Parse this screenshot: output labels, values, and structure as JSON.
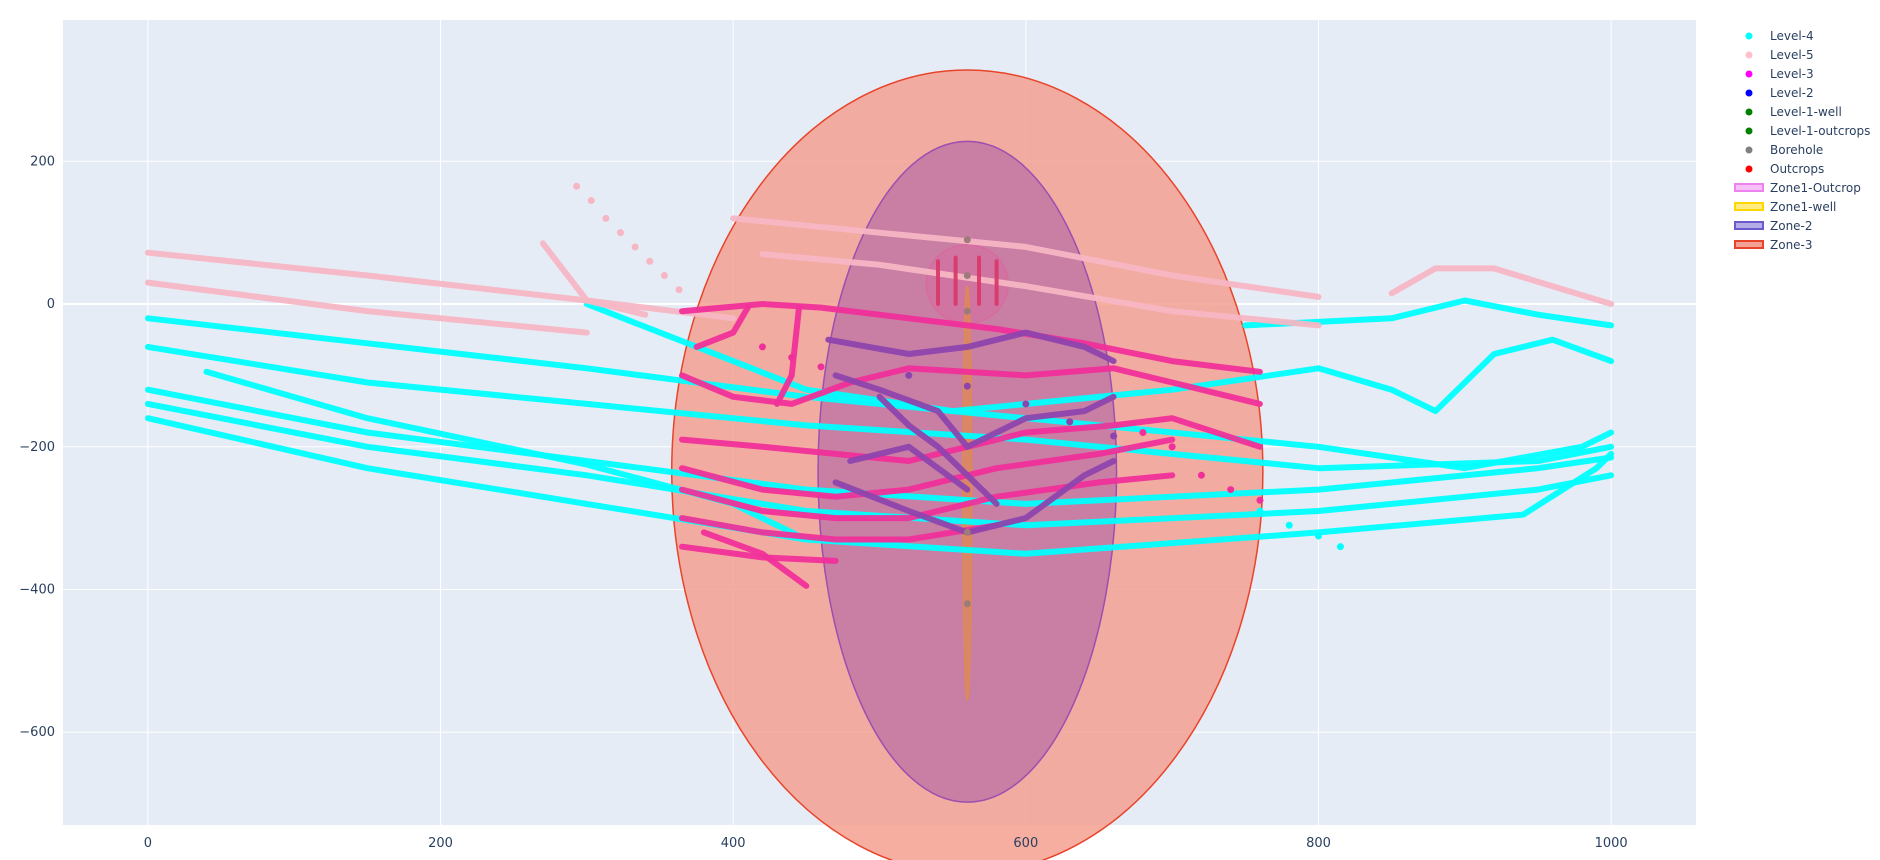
{
  "chart_data": {
    "type": "scatter",
    "title": "",
    "xlabel": "",
    "ylabel": "",
    "xlim": [
      -58,
      1058
    ],
    "ylim": [
      -730,
      398
    ],
    "x_ticks": [
      0,
      200,
      400,
      600,
      800,
      1000
    ],
    "y_ticks": [
      -600,
      -400,
      -200,
      0,
      200
    ],
    "x_tick_labels": [
      "0",
      "200",
      "400",
      "600",
      "800",
      "1000"
    ],
    "y_tick_labels": [
      "−600",
      "−400",
      "−200",
      "0",
      "200"
    ],
    "grid": true,
    "legend_position": "top-right",
    "colors": {
      "plot_bg": "#e5ecf6",
      "grid": "#ffffff",
      "Level-4": "#00ffff",
      "Level-5": "#ffc0cb",
      "Level-3": "#ff00ff",
      "Level-2": "#0000ff",
      "Level-1-well": "#008000",
      "Level-1-outcrops": "#008000",
      "Borehole": "#808080",
      "Outcrops": "#ff0000",
      "Zone1-Outcrop": "#ee82ee",
      "Zone1-well": "#ffd700",
      "Zone-2": "#6a5acd",
      "Zone-3": "#e8442a"
    },
    "legend": [
      {
        "name": "Level-4",
        "kind": "marker"
      },
      {
        "name": "Level-5",
        "kind": "marker"
      },
      {
        "name": "Level-3",
        "kind": "marker"
      },
      {
        "name": "Level-2",
        "kind": "marker"
      },
      {
        "name": "Level-1-well",
        "kind": "marker"
      },
      {
        "name": "Level-1-outcrops",
        "kind": "marker"
      },
      {
        "name": "Borehole",
        "kind": "marker"
      },
      {
        "name": "Outcrops",
        "kind": "marker"
      },
      {
        "name": "Zone1-Outcrop",
        "kind": "fill"
      },
      {
        "name": "Zone1-well",
        "kind": "fill"
      },
      {
        "name": "Zone-2",
        "kind": "fill"
      },
      {
        "name": "Zone-3",
        "kind": "fill"
      }
    ],
    "zones": [
      {
        "name": "Zone-3",
        "shape": "ellipse",
        "cx": 560,
        "cy": -235,
        "rx": 202,
        "ry": 563
      },
      {
        "name": "Zone-2",
        "shape": "ellipse",
        "cx": 560,
        "cy": -235,
        "rx": 102,
        "ry": 463
      },
      {
        "name": "Zone1-Outcrop",
        "shape": "ellipse",
        "cx": 560,
        "cy": 28,
        "rx": 28,
        "ry": 55
      },
      {
        "name": "Zone1-well",
        "shape": "ellipse",
        "cx": 560,
        "cy": -265,
        "rx": 3,
        "ry": 290
      }
    ],
    "series": [
      {
        "name": "Level-4",
        "mode": "lines",
        "points": [
          [
            0,
            -20
          ],
          [
            150,
            -55
          ],
          [
            300,
            -90
          ],
          [
            450,
            -130
          ],
          [
            600,
            -160
          ],
          [
            800,
            -200
          ],
          [
            900,
            -230
          ],
          [
            980,
            -200
          ],
          [
            1000,
            -180
          ]
        ]
      },
      {
        "name": "Level-4",
        "mode": "lines",
        "points": [
          [
            0,
            -60
          ],
          [
            150,
            -110
          ],
          [
            300,
            -140
          ],
          [
            450,
            -170
          ],
          [
            600,
            -190
          ],
          [
            800,
            -230
          ],
          [
            950,
            -220
          ],
          [
            1000,
            -200
          ]
        ]
      },
      {
        "name": "Level-4",
        "mode": "lines",
        "points": [
          [
            0,
            -120
          ],
          [
            150,
            -180
          ],
          [
            300,
            -220
          ],
          [
            450,
            -260
          ],
          [
            600,
            -280
          ],
          [
            800,
            -260
          ],
          [
            950,
            -230
          ],
          [
            1000,
            -215
          ]
        ]
      },
      {
        "name": "Level-4",
        "mode": "lines",
        "points": [
          [
            0,
            -140
          ],
          [
            150,
            -200
          ],
          [
            300,
            -240
          ],
          [
            450,
            -290
          ],
          [
            600,
            -310
          ],
          [
            800,
            -290
          ],
          [
            950,
            -260
          ],
          [
            1000,
            -240
          ]
        ]
      },
      {
        "name": "Level-4",
        "mode": "lines",
        "points": [
          [
            0,
            -160
          ],
          [
            150,
            -230
          ],
          [
            300,
            -280
          ],
          [
            450,
            -330
          ],
          [
            600,
            -350
          ],
          [
            800,
            -320
          ],
          [
            940,
            -295
          ],
          [
            990,
            -230
          ],
          [
            1000,
            -210
          ]
        ]
      },
      {
        "name": "Level-4",
        "mode": "lines",
        "points": [
          [
            40,
            -95
          ],
          [
            150,
            -160
          ],
          [
            300,
            -225
          ],
          [
            400,
            -280
          ],
          [
            450,
            -330
          ]
        ]
      },
      {
        "name": "Level-4",
        "mode": "lines",
        "points": [
          [
            300,
            0
          ],
          [
            350,
            -40
          ],
          [
            400,
            -80
          ],
          [
            450,
            -120
          ],
          [
            550,
            -150
          ],
          [
            700,
            -120
          ],
          [
            800,
            -90
          ],
          [
            850,
            -120
          ],
          [
            880,
            -150
          ],
          [
            920,
            -70
          ],
          [
            960,
            -50
          ],
          [
            1000,
            -80
          ]
        ]
      },
      {
        "name": "Level-4",
        "mode": "lines",
        "points": [
          [
            750,
            -30
          ],
          [
            850,
            -20
          ],
          [
            900,
            5
          ],
          [
            950,
            -15
          ],
          [
            1000,
            -30
          ]
        ]
      },
      {
        "name": "Level-5",
        "mode": "lines",
        "points": [
          [
            0,
            72
          ],
          [
            150,
            40
          ],
          [
            300,
            5
          ],
          [
            400,
            -20
          ]
        ]
      },
      {
        "name": "Level-5",
        "mode": "lines",
        "points": [
          [
            0,
            30
          ],
          [
            150,
            -10
          ],
          [
            300,
            -40
          ]
        ]
      },
      {
        "name": "Level-5",
        "mode": "lines",
        "points": [
          [
            270,
            85
          ],
          [
            300,
            5
          ],
          [
            340,
            -15
          ]
        ]
      },
      {
        "name": "Level-5",
        "mode": "lines",
        "points": [
          [
            400,
            120
          ],
          [
            500,
            100
          ],
          [
            600,
            80
          ],
          [
            700,
            40
          ],
          [
            800,
            10
          ]
        ]
      },
      {
        "name": "Level-5",
        "mode": "lines",
        "points": [
          [
            420,
            70
          ],
          [
            500,
            55
          ],
          [
            600,
            25
          ],
          [
            700,
            -10
          ],
          [
            800,
            -30
          ]
        ]
      },
      {
        "name": "Level-5",
        "mode": "lines",
        "points": [
          [
            850,
            15
          ],
          [
            880,
            50
          ],
          [
            920,
            50
          ],
          [
            960,
            25
          ],
          [
            1000,
            0
          ]
        ]
      },
      {
        "name": "Level-5",
        "mode": "markers",
        "points": [
          [
            293,
            165
          ],
          [
            303,
            145
          ],
          [
            313,
            120
          ],
          [
            323,
            100
          ],
          [
            333,
            80
          ],
          [
            343,
            60
          ],
          [
            353,
            40
          ],
          [
            363,
            20
          ]
        ]
      },
      {
        "name": "Level-3",
        "mode": "lines",
        "points": [
          [
            365,
            -10
          ],
          [
            420,
            0
          ],
          [
            460,
            -5
          ],
          [
            520,
            -20
          ],
          [
            580,
            -35
          ],
          [
            640,
            -55
          ],
          [
            700,
            -80
          ],
          [
            760,
            -95
          ]
        ]
      },
      {
        "name": "Level-3",
        "mode": "lines",
        "points": [
          [
            365,
            -100
          ],
          [
            400,
            -130
          ],
          [
            440,
            -140
          ],
          [
            480,
            -110
          ],
          [
            520,
            -90
          ],
          [
            600,
            -100
          ],
          [
            660,
            -90
          ],
          [
            700,
            -110
          ],
          [
            760,
            -140
          ]
        ]
      },
      {
        "name": "Level-3",
        "mode": "lines",
        "points": [
          [
            365,
            -190
          ],
          [
            420,
            -200
          ],
          [
            470,
            -210
          ],
          [
            520,
            -220
          ],
          [
            560,
            -200
          ],
          [
            600,
            -180
          ],
          [
            660,
            -170
          ],
          [
            700,
            -160
          ],
          [
            760,
            -200
          ]
        ]
      },
      {
        "name": "Level-3",
        "mode": "lines",
        "points": [
          [
            365,
            -230
          ],
          [
            420,
            -260
          ],
          [
            470,
            -270
          ],
          [
            520,
            -260
          ],
          [
            580,
            -230
          ],
          [
            650,
            -210
          ],
          [
            700,
            -190
          ]
        ]
      },
      {
        "name": "Level-3",
        "mode": "lines",
        "points": [
          [
            365,
            -260
          ],
          [
            420,
            -290
          ],
          [
            470,
            -300
          ],
          [
            520,
            -300
          ],
          [
            580,
            -270
          ],
          [
            650,
            -250
          ],
          [
            700,
            -240
          ]
        ]
      },
      {
        "name": "Level-3",
        "mode": "lines",
        "points": [
          [
            365,
            -300
          ],
          [
            420,
            -320
          ],
          [
            470,
            -330
          ],
          [
            520,
            -330
          ],
          [
            580,
            -310
          ]
        ]
      },
      {
        "name": "Level-3",
        "mode": "lines",
        "points": [
          [
            365,
            -340
          ],
          [
            420,
            -355
          ],
          [
            470,
            -360
          ]
        ]
      },
      {
        "name": "Level-3",
        "mode": "lines",
        "points": [
          [
            380,
            -320
          ],
          [
            420,
            -350
          ],
          [
            450,
            -395
          ]
        ]
      },
      {
        "name": "Level-3",
        "mode": "lines",
        "points": [
          [
            430,
            -140
          ],
          [
            440,
            -100
          ],
          [
            445,
            -5
          ]
        ]
      },
      {
        "name": "Level-3",
        "mode": "lines",
        "points": [
          [
            375,
            -60
          ],
          [
            400,
            -40
          ],
          [
            410,
            -5
          ]
        ]
      },
      {
        "name": "Level-2",
        "mode": "lines",
        "points": [
          [
            465,
            -50
          ],
          [
            520,
            -70
          ],
          [
            560,
            -60
          ],
          [
            600,
            -40
          ],
          [
            640,
            -60
          ],
          [
            660,
            -80
          ]
        ]
      },
      {
        "name": "Level-2",
        "mode": "lines",
        "points": [
          [
            470,
            -100
          ],
          [
            500,
            -120
          ],
          [
            540,
            -150
          ],
          [
            560,
            -200
          ],
          [
            600,
            -160
          ],
          [
            640,
            -150
          ],
          [
            660,
            -130
          ]
        ]
      },
      {
        "name": "Level-2",
        "mode": "lines",
        "points": [
          [
            470,
            -250
          ],
          [
            520,
            -290
          ],
          [
            560,
            -320
          ],
          [
            600,
            -300
          ],
          [
            640,
            -240
          ],
          [
            660,
            -220
          ]
        ]
      },
      {
        "name": "Level-2",
        "mode": "lines",
        "points": [
          [
            480,
            -220
          ],
          [
            520,
            -200
          ],
          [
            540,
            -230
          ],
          [
            560,
            -260
          ]
        ]
      },
      {
        "name": "Level-2",
        "mode": "lines",
        "points": [
          [
            500,
            -130
          ],
          [
            520,
            -170
          ],
          [
            540,
            -200
          ],
          [
            560,
            -240
          ],
          [
            580,
            -280
          ]
        ]
      },
      {
        "name": "Level-2",
        "mode": "markers",
        "points": [
          [
            520,
            -100
          ],
          [
            560,
            -115
          ],
          [
            600,
            -140
          ],
          [
            630,
            -165
          ],
          [
            660,
            -185
          ]
        ]
      },
      {
        "name": "Level-3",
        "mode": "markers",
        "points": [
          [
            420,
            -60
          ],
          [
            440,
            -75
          ],
          [
            460,
            -88
          ],
          [
            680,
            -180
          ],
          [
            700,
            -200
          ],
          [
            720,
            -240
          ],
          [
            740,
            -260
          ],
          [
            760,
            -275
          ]
        ]
      },
      {
        "name": "Level-4",
        "mode": "markers",
        "points": [
          [
            760,
            -290
          ],
          [
            780,
            -310
          ],
          [
            800,
            -325
          ],
          [
            815,
            -340
          ]
        ]
      },
      {
        "name": "Borehole",
        "mode": "markers",
        "points": [
          [
            560,
            90
          ],
          [
            560,
            40
          ],
          [
            560,
            -10
          ],
          [
            560,
            -320
          ],
          [
            560,
            -420
          ]
        ]
      },
      {
        "name": "Outcrops",
        "mode": "lines",
        "points": [
          [
            540,
            60
          ],
          [
            540,
            0
          ]
        ]
      },
      {
        "name": "Outcrops",
        "mode": "lines",
        "points": [
          [
            552,
            65
          ],
          [
            552,
            0
          ]
        ]
      },
      {
        "name": "Outcrops",
        "mode": "lines",
        "points": [
          [
            568,
            65
          ],
          [
            568,
            0
          ]
        ]
      },
      {
        "name": "Outcrops",
        "mode": "lines",
        "points": [
          [
            580,
            60
          ],
          [
            580,
            0
          ]
        ]
      }
    ]
  }
}
